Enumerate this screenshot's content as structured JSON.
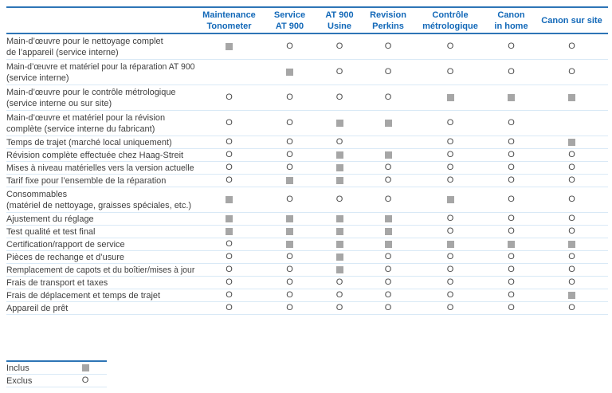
{
  "table": {
    "columns": [
      {
        "lines": [
          "Maintenance",
          "Tonometer"
        ]
      },
      {
        "lines": [
          "Service",
          "AT 900"
        ]
      },
      {
        "lines": [
          "AT 900",
          "Usine"
        ]
      },
      {
        "lines": [
          "Revision",
          "Perkins"
        ]
      },
      {
        "lines": [
          "Contrôle",
          "métrologique"
        ]
      },
      {
        "lines": [
          "Canon",
          "in home"
        ]
      },
      {
        "lines": [
          "Canon sur site"
        ]
      }
    ],
    "rows": [
      {
        "label_lines": [
          "Main-d’œuvre pour le nettoyage complet",
          "de l’appareil (service interne)"
        ],
        "cells": [
          "included",
          "excluded",
          "excluded",
          "excluded",
          "excluded",
          "excluded",
          "excluded"
        ]
      },
      {
        "label_lines": [
          "Main-d’œuvre et matériel pour la réparation AT 900",
          "(service interne)"
        ],
        "cells": [
          "none",
          "included",
          "excluded",
          "excluded",
          "excluded",
          "excluded",
          "excluded"
        ]
      },
      {
        "label_lines": [
          "Main-d’œuvre pour le contrôle métrologique",
          "(service interne ou sur site)"
        ],
        "cells": [
          "excluded",
          "excluded",
          "excluded",
          "excluded",
          "included",
          "included",
          "included"
        ]
      },
      {
        "label_lines": [
          "Main-d’œuvre et matériel pour la révision",
          "complète (service interne du fabricant)"
        ],
        "cells": [
          "excluded",
          "excluded",
          "included",
          "included",
          "excluded",
          "excluded",
          "none"
        ]
      },
      {
        "label_lines": [
          "Temps de trajet (marché local uniquement)"
        ],
        "cells": [
          "excluded",
          "excluded",
          "excluded",
          "none",
          "excluded",
          "excluded",
          "included"
        ]
      },
      {
        "label_lines": [
          "Révision complète effectuée chez Haag-Streit"
        ],
        "cells": [
          "excluded",
          "excluded",
          "included",
          "included",
          "excluded",
          "excluded",
          "excluded"
        ]
      },
      {
        "label_lines": [
          "Mises à niveau matérielles vers la version actuelle"
        ],
        "cells": [
          "excluded",
          "excluded",
          "included",
          "excluded",
          "excluded",
          "excluded",
          "excluded"
        ]
      },
      {
        "label_lines": [
          "Tarif fixe pour l’ensemble de la réparation"
        ],
        "cells": [
          "excluded",
          "included",
          "included",
          "excluded",
          "excluded",
          "excluded",
          "excluded"
        ]
      },
      {
        "label_lines": [
          "Consommables",
          "(matériel de nettoyage, graisses spéciales, etc.)"
        ],
        "cells": [
          "included",
          "excluded",
          "excluded",
          "excluded",
          "included",
          "excluded",
          "excluded"
        ]
      },
      {
        "label_lines": [
          "Ajustement du réglage"
        ],
        "cells": [
          "included",
          "included",
          "included",
          "included",
          "excluded",
          "excluded",
          "excluded"
        ]
      },
      {
        "label_lines": [
          "Test qualité et test final"
        ],
        "cells": [
          "included",
          "included",
          "included",
          "included",
          "excluded",
          "excluded",
          "excluded"
        ]
      },
      {
        "label_lines": [
          "Certification/rapport de service"
        ],
        "cells": [
          "excluded",
          "included",
          "included",
          "included",
          "included",
          "included",
          "included"
        ]
      },
      {
        "label_lines": [
          "Pièces de rechange et d’usure"
        ],
        "cells": [
          "excluded",
          "excluded",
          "included",
          "excluded",
          "excluded",
          "excluded",
          "excluded"
        ]
      },
      {
        "label_lines": [
          "Remplacement de capots et du boîtier/mises à jour"
        ],
        "cells": [
          "excluded",
          "excluded",
          "included",
          "excluded",
          "excluded",
          "excluded",
          "excluded"
        ]
      },
      {
        "label_lines": [
          "Frais de transport et taxes"
        ],
        "cells": [
          "excluded",
          "excluded",
          "excluded",
          "excluded",
          "excluded",
          "excluded",
          "excluded"
        ]
      },
      {
        "label_lines": [
          "Frais de déplacement et temps de trajet"
        ],
        "cells": [
          "excluded",
          "excluded",
          "excluded",
          "excluded",
          "excluded",
          "excluded",
          "included"
        ]
      },
      {
        "label_lines": [
          "Appareil de prêt"
        ],
        "cells": [
          "excluded",
          "excluded",
          "excluded",
          "excluded",
          "excluded",
          "excluded",
          "excluded"
        ]
      }
    ]
  },
  "legend": {
    "items": [
      {
        "label": "Inclus",
        "value": "included"
      },
      {
        "label": "Exclus",
        "value": "excluded"
      }
    ]
  },
  "symbols": {
    "excluded_glyph": "O"
  },
  "colors": {
    "accent_border": "#2e75b6",
    "header_text": "#1268b8",
    "grid_line": "#d9e9f6",
    "label_text": "#3f3f3f",
    "included_square": "#a6a6a6",
    "excluded_text": "#4d4d4d"
  }
}
